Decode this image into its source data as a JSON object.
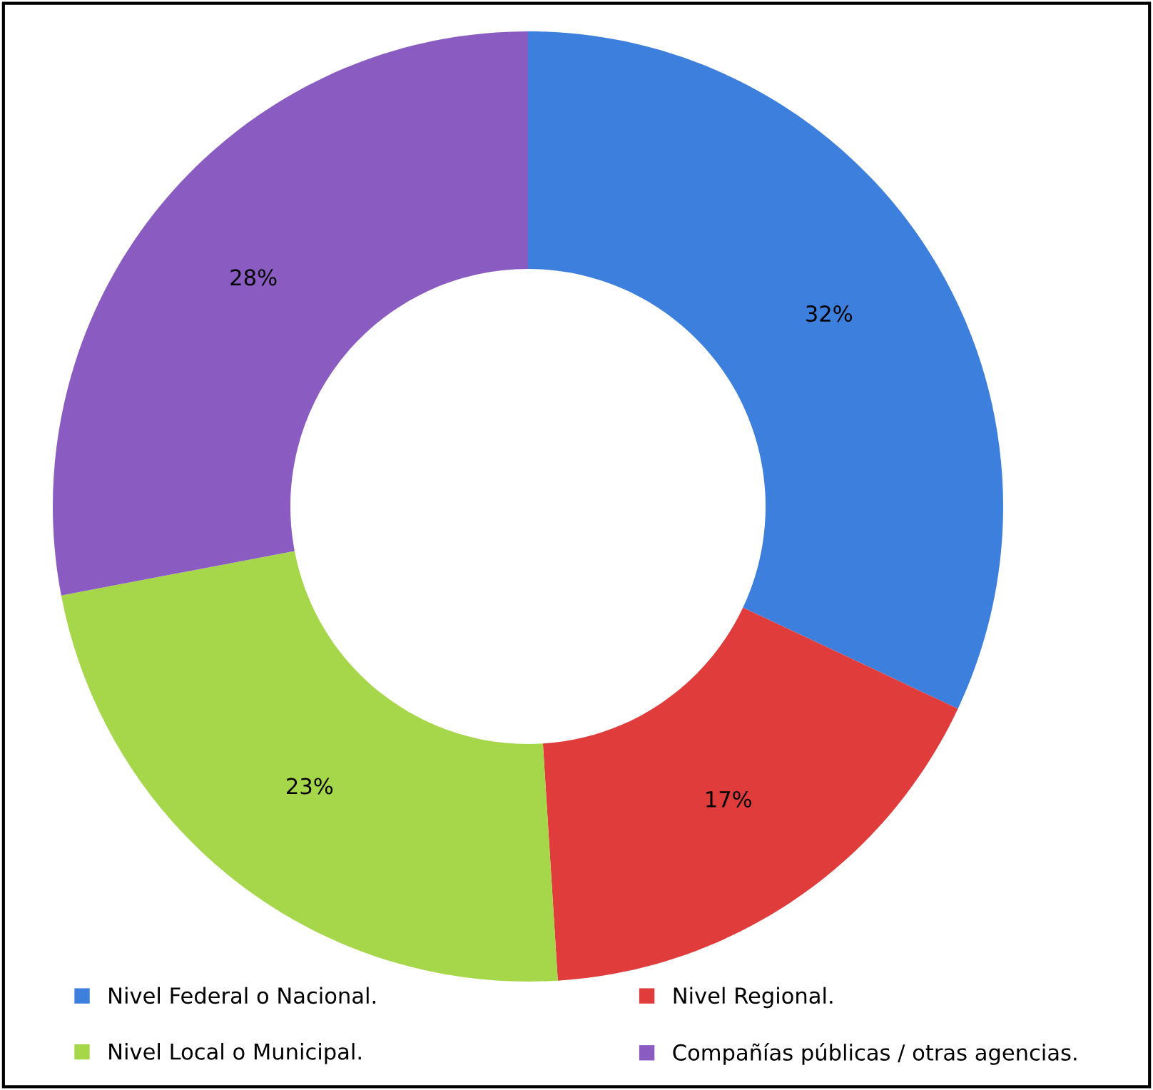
{
  "chart_data": {
    "type": "donut",
    "categories": [
      "Nivel Federal o Nacional.",
      "Nivel Regional.",
      "Nivel Local o Municipal.",
      "Compañías públicas / otras agencias."
    ],
    "values": [
      32,
      17,
      23,
      28
    ],
    "value_labels": [
      "32%",
      "17%",
      "23%",
      "28%"
    ],
    "colors": [
      "#3d7fdd",
      "#e03c3c",
      "#a6d64a",
      "#8a5cc2"
    ],
    "legend": "bottom"
  }
}
